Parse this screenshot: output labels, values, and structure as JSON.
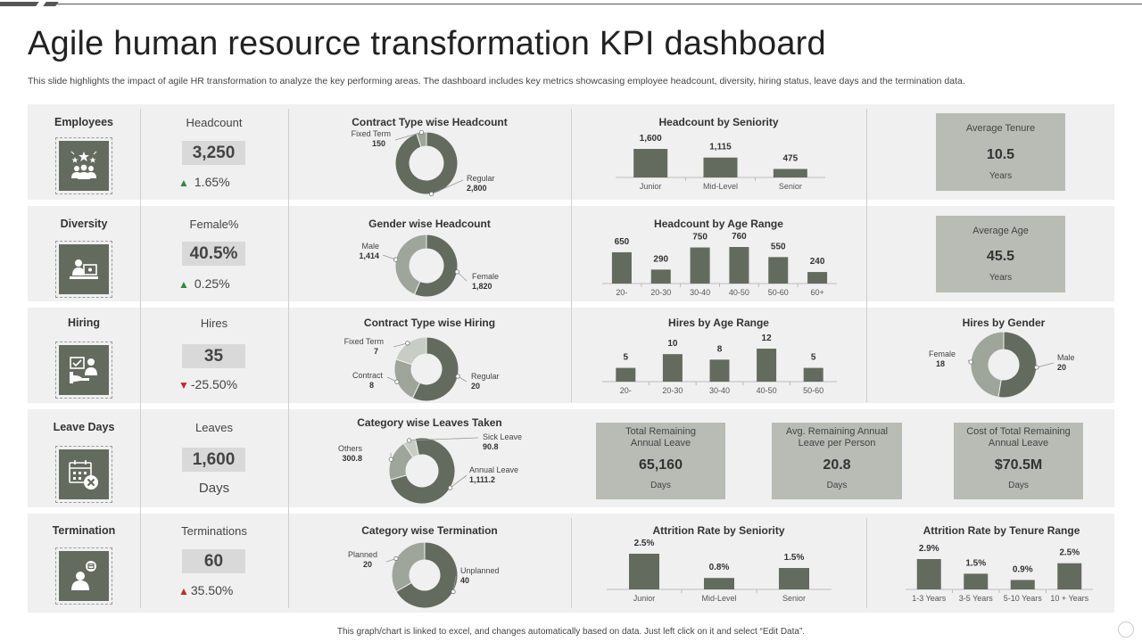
{
  "page": {
    "title": "Agile human resource transformation KPI dashboard",
    "subtitle": "This slide highlights the impact of agile HR transformation to analyze the key performing areas. The dashboard includes key metrics showcasing employee headcount, diversity, hiring status, leave days and the termination data.",
    "footer": "This graph/chart is linked to excel, and changes automatically based on data. Just left click on it and select “Edit Data”."
  },
  "colors": {
    "dark": "#636b5e",
    "mid": "#9ea59a",
    "light": "#c7ccc4",
    "panel": "#f0f0f0",
    "box": "#b8bcb4",
    "up": "#2e8b3a",
    "down": "#c0282e"
  },
  "rows": [
    {
      "category": "Employees",
      "icon": "employees-icon",
      "metric_label": "Headcount",
      "metric_value": "3,250",
      "change": "1.65%",
      "direction": "up"
    },
    {
      "category": "Diversity",
      "icon": "diversity-icon",
      "metric_label": "Female%",
      "metric_value": "40.5%",
      "change": "0.25%",
      "direction": "up"
    },
    {
      "category": "Hiring",
      "icon": "hiring-icon",
      "metric_label": "Hires",
      "metric_value": "35",
      "change": "-25.50%",
      "direction": "down"
    },
    {
      "category": "Leave Days",
      "icon": "leave-calendar-icon",
      "metric_label": "Leaves",
      "metric_value": "1,600",
      "sub": "Days"
    },
    {
      "category": "Termination",
      "icon": "termination-icon",
      "metric_label": "Terminations",
      "metric_value": "60",
      "change": "35.50%",
      "direction": "up-red"
    }
  ],
  "stat_boxes": {
    "avg_tenure": {
      "label": "Average Tenure",
      "value": "10.5",
      "unit": "Years"
    },
    "avg_age": {
      "label": "Average Age",
      "value": "45.5",
      "unit": "Years"
    },
    "total_remaining_leave": {
      "label": "Total Remaining Annual Leave",
      "value": "65,160",
      "unit": "Days"
    },
    "avg_remaining_leave": {
      "label": "Avg. Remaining Annual Leave per Person",
      "value": "20.8",
      "unit": "Days"
    },
    "cost_remaining_leave": {
      "label": "Cost of Total Remaining Annual Leave",
      "value": "$70.5M",
      "unit": "Days"
    }
  },
  "chart_data": [
    {
      "id": "contract_headcount",
      "type": "pie",
      "title": "Contract Type wise Headcount",
      "slices": [
        {
          "label": "Regular",
          "value": 2800,
          "value_label": "2,800"
        },
        {
          "label": "Fixed Term",
          "value": 150,
          "value_label": "150"
        }
      ]
    },
    {
      "id": "headcount_seniority",
      "type": "bar",
      "title": "Headcount by Seniority",
      "categories": [
        "Junior",
        "Mid-Level",
        "Senior"
      ],
      "values": [
        1600,
        1115,
        475
      ],
      "value_labels": [
        "1,600",
        "1,115",
        "475"
      ]
    },
    {
      "id": "gender_headcount",
      "type": "pie",
      "title": "Gender wise Headcount",
      "slices": [
        {
          "label": "Female",
          "value": 1820,
          "value_label": "1,820"
        },
        {
          "label": "Male",
          "value": 1414,
          "value_label": "1,414"
        }
      ]
    },
    {
      "id": "headcount_age",
      "type": "bar",
      "title": "Headcount by Age Range",
      "categories": [
        "20-",
        "20-30",
        "30-40",
        "40-50",
        "50-60",
        "60+"
      ],
      "values": [
        650,
        290,
        750,
        760,
        550,
        240
      ]
    },
    {
      "id": "contract_hiring",
      "type": "pie",
      "title": "Contract Type wise Hiring",
      "slices": [
        {
          "label": "Regular",
          "value": 20
        },
        {
          "label": "Contract",
          "value": 8
        },
        {
          "label": "Fixed Term",
          "value": 7
        }
      ]
    },
    {
      "id": "hires_age",
      "type": "bar",
      "title": "Hires by Age Range",
      "categories": [
        "20-",
        "20-30",
        "30-40",
        "40-50",
        "50-60"
      ],
      "values": [
        5,
        10,
        8,
        12,
        5
      ]
    },
    {
      "id": "hires_gender",
      "type": "pie",
      "title": "Hires by Gender",
      "slices": [
        {
          "label": "Male",
          "value": 20
        },
        {
          "label": "Female",
          "value": 18
        }
      ]
    },
    {
      "id": "leaves_category",
      "type": "pie",
      "title": "Category wise Leaves Taken",
      "slices": [
        {
          "label": "Annual Leave",
          "value": 1111.2,
          "value_label": "1,111.2"
        },
        {
          "label": "Others",
          "value": 300.8,
          "value_label": "300.8"
        },
        {
          "label": "Sick Leave",
          "value": 90.8,
          "value_label": "90.8"
        }
      ]
    },
    {
      "id": "termination_category",
      "type": "pie",
      "title": "Category wise Termination",
      "slices": [
        {
          "label": "Unplanned",
          "value": 40
        },
        {
          "label": "Planned",
          "value": 20
        }
      ]
    },
    {
      "id": "attrition_seniority",
      "type": "bar",
      "title": "Attrition Rate by Seniority",
      "categories": [
        "Junior",
        "Mid-Level",
        "Senior"
      ],
      "values": [
        2.5,
        0.8,
        1.5
      ],
      "value_labels": [
        "2.5%",
        "0.8%",
        "1.5%"
      ]
    },
    {
      "id": "attrition_tenure",
      "type": "bar",
      "title": "Attrition Rate by Tenure Range",
      "categories": [
        "1-3 Years",
        "3-5 Years",
        "5-10 Years",
        "10 + Years"
      ],
      "values": [
        2.9,
        1.5,
        0.9,
        2.5
      ],
      "value_labels": [
        "2.9%",
        "1.5%",
        "0.9%",
        "2.5%"
      ]
    }
  ]
}
